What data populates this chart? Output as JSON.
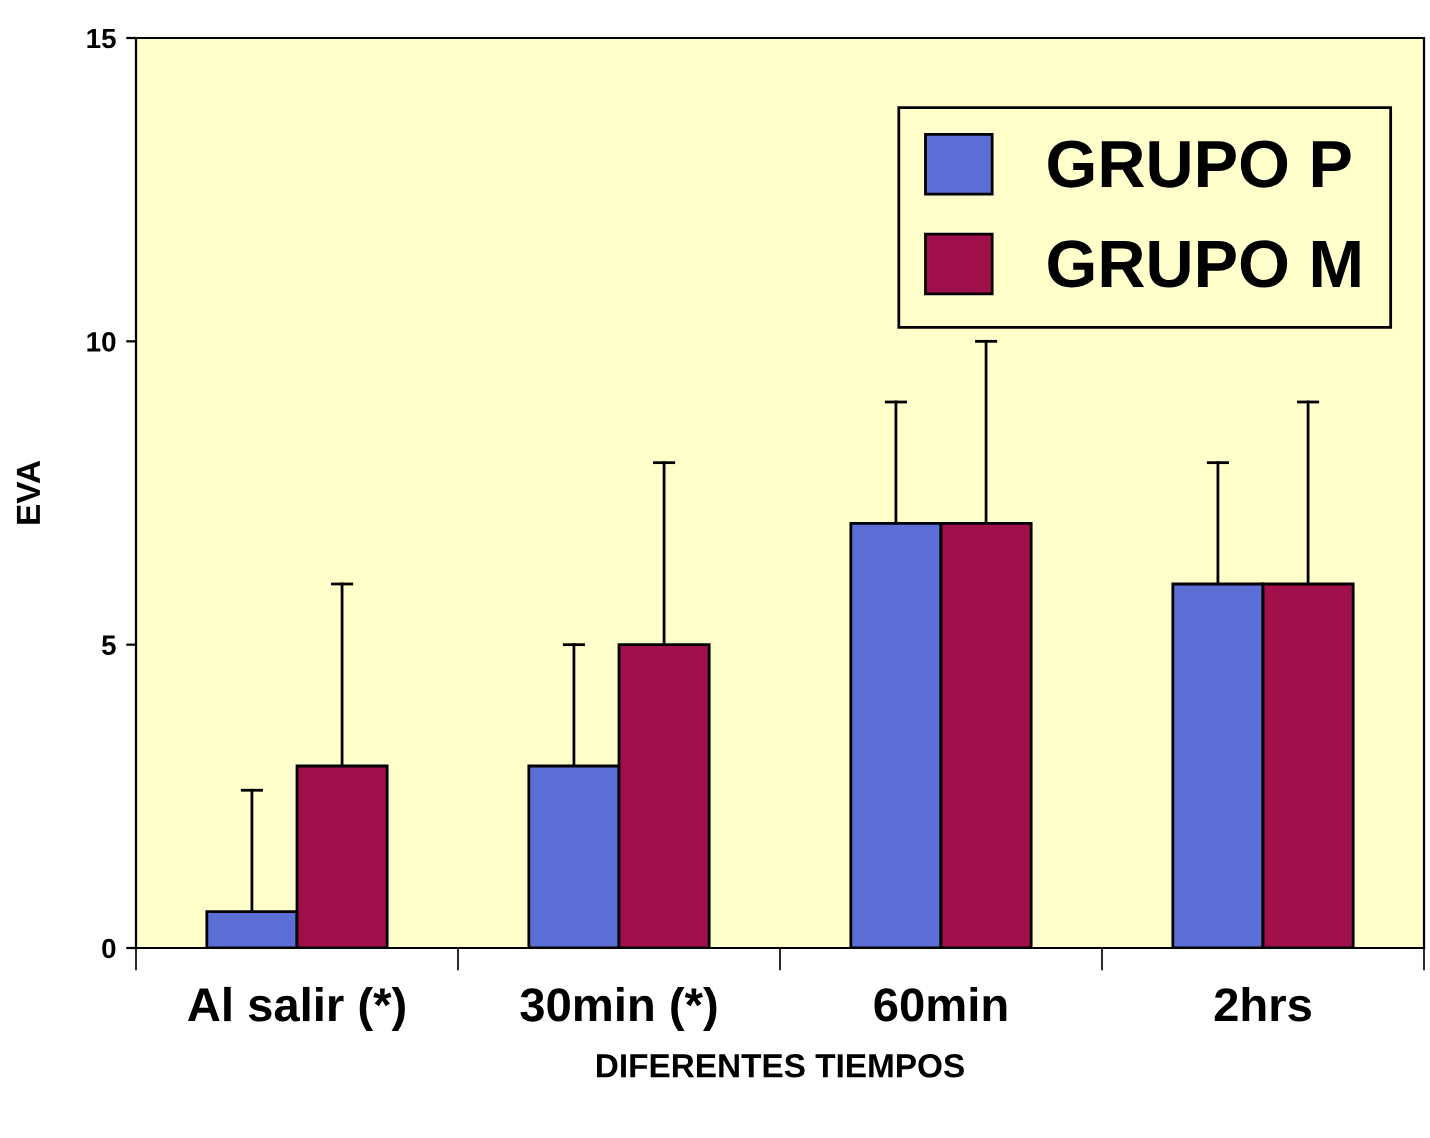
{
  "chart_data": {
    "type": "bar",
    "xlabel": "DIFERENTES TIEMPOS",
    "ylabel": "EVA",
    "categories": [
      "Al salir (*)",
      "30min (*)",
      "60min",
      "2hrs"
    ],
    "series": [
      {
        "name": "GRUPO P",
        "color": "#5b6fd6",
        "values": [
          0.6,
          3,
          7,
          6
        ],
        "errors": [
          [
            0.6,
            2.6
          ],
          [
            3,
            5
          ],
          [
            7,
            9
          ],
          [
            6,
            8
          ]
        ]
      },
      {
        "name": "GRUPO M",
        "color": "#a0104a",
        "values": [
          3,
          5,
          7,
          6
        ],
        "errors": [
          [
            3,
            6
          ],
          [
            5,
            8
          ],
          [
            7,
            10
          ],
          [
            6,
            9
          ]
        ]
      }
    ],
    "ylim": [
      0,
      15
    ],
    "yticks": [
      0,
      5,
      10,
      15
    ],
    "grid": false,
    "legend": "top right"
  }
}
